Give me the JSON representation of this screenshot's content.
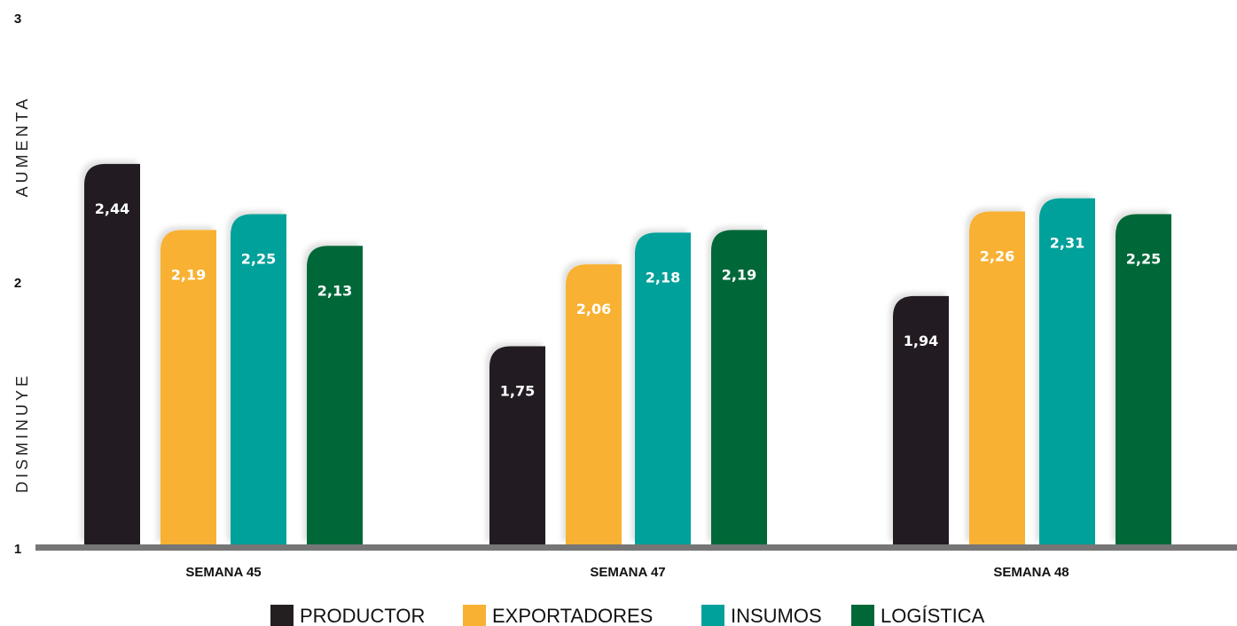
{
  "chart_data": {
    "type": "bar",
    "categories": [
      "SEMANA 45",
      "SEMANA 47",
      "SEMANA 48"
    ],
    "series": [
      {
        "name": "PRODUCTOR",
        "color": "#231f20",
        "values": [
          2.44,
          1.75,
          1.94
        ],
        "labels": [
          "2,44",
          "1,75",
          "1,94"
        ]
      },
      {
        "name": "EXPORTADORES",
        "color": "#f8b133",
        "values": [
          2.19,
          2.06,
          2.26
        ],
        "labels": [
          "2,19",
          "2,06",
          "2,26"
        ]
      },
      {
        "name": "INSUMOS",
        "color": "#00a19a",
        "values": [
          2.25,
          2.18,
          2.31
        ],
        "labels": [
          "2,25",
          "2,18",
          "2,31"
        ]
      },
      {
        "name": "LOGÍSTICA",
        "color": "#006837",
        "values": [
          2.13,
          2.19,
          2.25
        ],
        "labels": [
          "2,13",
          "2,19",
          "2,25"
        ]
      }
    ],
    "ylim": [
      1,
      3
    ],
    "yticks": [
      "1",
      "2",
      "3"
    ],
    "side_labels": {
      "upper": "AUMENTA",
      "lower": "DISMINUYE"
    },
    "legend_position": "bottom",
    "grid": false
  }
}
